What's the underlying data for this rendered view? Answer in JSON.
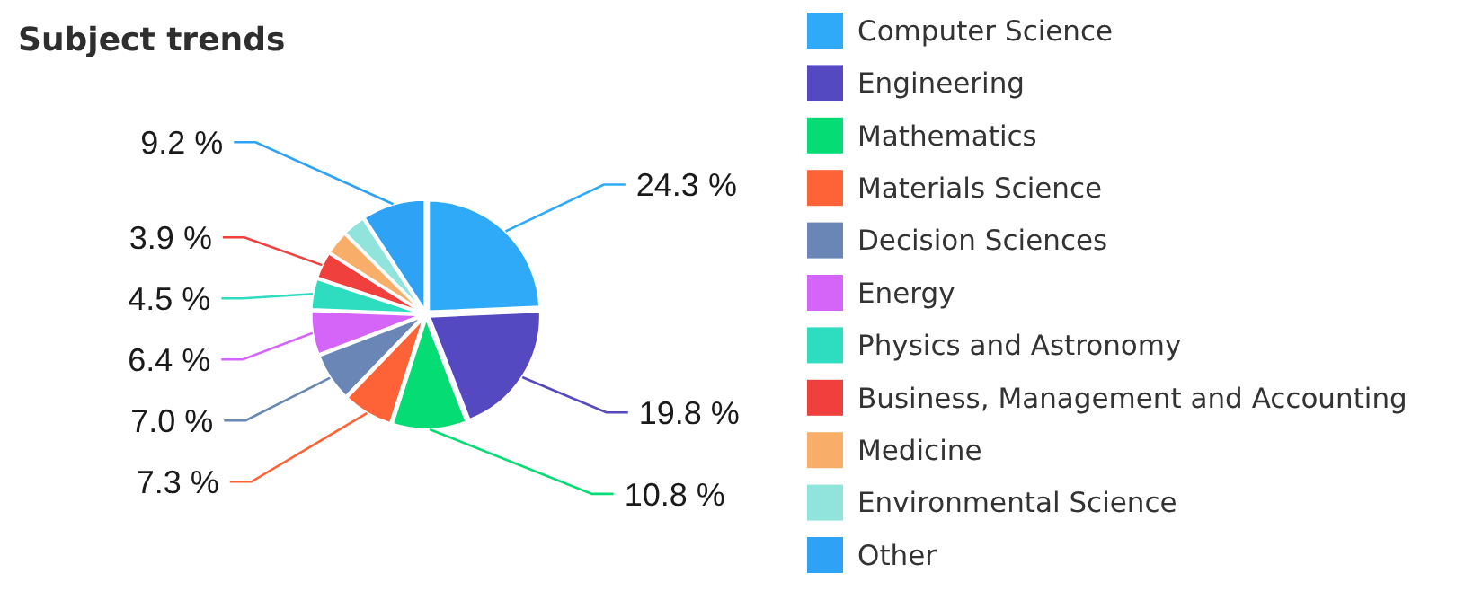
{
  "chart_data": {
    "type": "pie",
    "title": "Subject trends",
    "categories": [
      "Computer Science",
      "Engineering",
      "Mathematics",
      "Materials Science",
      "Decision Sciences",
      "Energy",
      "Physics and Astronomy",
      "Business, Management and Accounting",
      "Medicine",
      "Environmental Science",
      "Other"
    ],
    "values": [
      24.3,
      19.8,
      10.8,
      7.3,
      7.0,
      6.4,
      4.5,
      3.9,
      3.5,
      3.3,
      9.2
    ],
    "colors": [
      "#2eaaf8",
      "#5549c2",
      "#05dc74",
      "#fd6336",
      "#6a86b6",
      "#d565f8",
      "#2edcc0",
      "#f0403e",
      "#f8ae68",
      "#91e4dc",
      "#2ea3f6"
    ],
    "value_labels": [
      "24.3 %",
      "19.8 %",
      "10.8 %",
      "7.3 %",
      "7.0 %",
      "6.4 %",
      "4.5 %",
      "3.9 %",
      null,
      null,
      "9.2 %"
    ],
    "legend": "right"
  }
}
